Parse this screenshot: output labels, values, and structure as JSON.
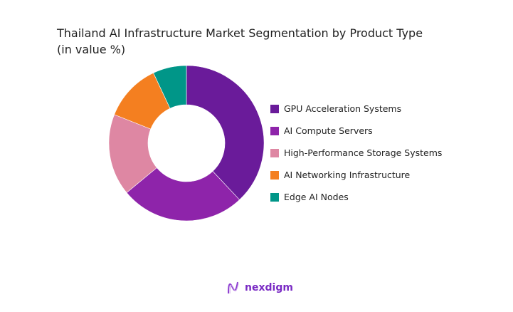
{
  "chart_data": {
    "type": "pie",
    "donut": true,
    "title": "Thailand AI Infrastructure Market Segmentation by Product Type",
    "subtitle": "(in value %)",
    "legend_position": "right",
    "categories": [
      "GPU Acceleration Systems",
      "AI Compute Servers",
      "High-Performance Storage Systems",
      "AI Networking Infrastructure",
      "Edge AI Nodes"
    ],
    "values": [
      38,
      26,
      17,
      12,
      7
    ],
    "colors": [
      "#6a1b9a",
      "#8e24aa",
      "#de87a3",
      "#f47f20",
      "#009688"
    ]
  },
  "brand": {
    "name": "nexdigm",
    "color": "#7a2bc4"
  }
}
